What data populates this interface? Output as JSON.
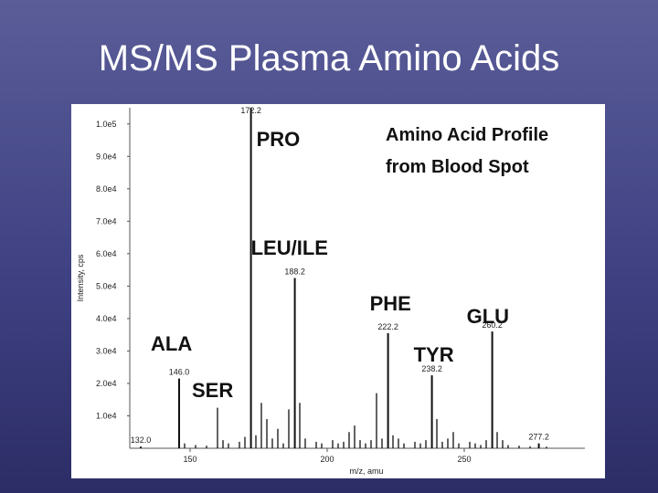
{
  "slide": {
    "title": "MS/MS Plasma Amino Acids"
  },
  "chart_data": {
    "type": "bar",
    "xlabel": "m/z, amu",
    "ylabel": "Intensity, cps",
    "xlim": [
      128,
      294
    ],
    "ylim": [
      0,
      105000
    ],
    "x_ticks": [
      {
        "value": 150,
        "label": "150"
      },
      {
        "value": 200,
        "label": "200"
      },
      {
        "value": 250,
        "label": "250"
      }
    ],
    "y_ticks": [
      {
        "value": 10000,
        "label": "1.0e4"
      },
      {
        "value": 20000,
        "label": "2.0e4"
      },
      {
        "value": 30000,
        "label": "3.0e4"
      },
      {
        "value": 40000,
        "label": "4.0e4"
      },
      {
        "value": 50000,
        "label": "5.0e4"
      },
      {
        "value": 60000,
        "label": "6.0e4"
      },
      {
        "value": 70000,
        "label": "7.0e4"
      },
      {
        "value": 80000,
        "label": "8.0e4"
      },
      {
        "value": 90000,
        "label": "9.0e4"
      },
      {
        "value": 100000,
        "label": "1.0e5"
      }
    ],
    "peaks": [
      {
        "x": 132.0,
        "y": 500,
        "label": "132.0"
      },
      {
        "x": 146.0,
        "y": 21500,
        "label": "146.0"
      },
      {
        "x": 172.2,
        "y": 105000,
        "label": "172.2"
      },
      {
        "x": 188.2,
        "y": 52500,
        "label": "188.2"
      },
      {
        "x": 222.2,
        "y": 35500,
        "label": "222.2"
      },
      {
        "x": 238.2,
        "y": 22500,
        "label": "238.2"
      },
      {
        "x": 260.2,
        "y": 36000,
        "label": "260.2"
      },
      {
        "x": 277.2,
        "y": 1500,
        "label": "277.2"
      }
    ],
    "minor_peaks": [
      {
        "x": 148,
        "y": 1500
      },
      {
        "x": 152,
        "y": 1000
      },
      {
        "x": 156,
        "y": 800
      },
      {
        "x": 160,
        "y": 12500
      },
      {
        "x": 162,
        "y": 2500
      },
      {
        "x": 164,
        "y": 1500
      },
      {
        "x": 168,
        "y": 2000
      },
      {
        "x": 170,
        "y": 3500
      },
      {
        "x": 174,
        "y": 4000
      },
      {
        "x": 176,
        "y": 14000
      },
      {
        "x": 178,
        "y": 9000
      },
      {
        "x": 180,
        "y": 3000
      },
      {
        "x": 182,
        "y": 6000
      },
      {
        "x": 184,
        "y": 1500
      },
      {
        "x": 186,
        "y": 12000
      },
      {
        "x": 190,
        "y": 14000
      },
      {
        "x": 192,
        "y": 3000
      },
      {
        "x": 196,
        "y": 2000
      },
      {
        "x": 198,
        "y": 1500
      },
      {
        "x": 202,
        "y": 2500
      },
      {
        "x": 204,
        "y": 1500
      },
      {
        "x": 206,
        "y": 2000
      },
      {
        "x": 208,
        "y": 5000
      },
      {
        "x": 210,
        "y": 7000
      },
      {
        "x": 212,
        "y": 2500
      },
      {
        "x": 214,
        "y": 1500
      },
      {
        "x": 216,
        "y": 2500
      },
      {
        "x": 218,
        "y": 17000
      },
      {
        "x": 220,
        "y": 3000
      },
      {
        "x": 224,
        "y": 4000
      },
      {
        "x": 226,
        "y": 3000
      },
      {
        "x": 228,
        "y": 1500
      },
      {
        "x": 232,
        "y": 2000
      },
      {
        "x": 234,
        "y": 1500
      },
      {
        "x": 236,
        "y": 2500
      },
      {
        "x": 240,
        "y": 9000
      },
      {
        "x": 242,
        "y": 2000
      },
      {
        "x": 244,
        "y": 3000
      },
      {
        "x": 246,
        "y": 5000
      },
      {
        "x": 248,
        "y": 1500
      },
      {
        "x": 252,
        "y": 2000
      },
      {
        "x": 254,
        "y": 1500
      },
      {
        "x": 256,
        "y": 1000
      },
      {
        "x": 258,
        "y": 2500
      },
      {
        "x": 262,
        "y": 5000
      },
      {
        "x": 264,
        "y": 2500
      },
      {
        "x": 266,
        "y": 1000
      },
      {
        "x": 270,
        "y": 800
      },
      {
        "x": 274,
        "y": 600
      },
      {
        "x": 280,
        "y": 500
      }
    ],
    "amino_acid_labels": [
      {
        "text": "PRO",
        "peak_x": 172.2
      },
      {
        "text": "LEU/ILE",
        "peak_x": 188.2
      },
      {
        "text": "PHE",
        "peak_x": 222.2
      },
      {
        "text": "GLU",
        "peak_x": 260.2
      },
      {
        "text": "ALA",
        "peak_x": 146.0
      },
      {
        "text": "TYR",
        "peak_x": 238.2
      },
      {
        "text": "SER",
        "peak_x": 160
      }
    ],
    "annotation_lines": [
      "Amino Acid Profile",
      "from Blood Spot"
    ],
    "line_color": "#111111"
  }
}
